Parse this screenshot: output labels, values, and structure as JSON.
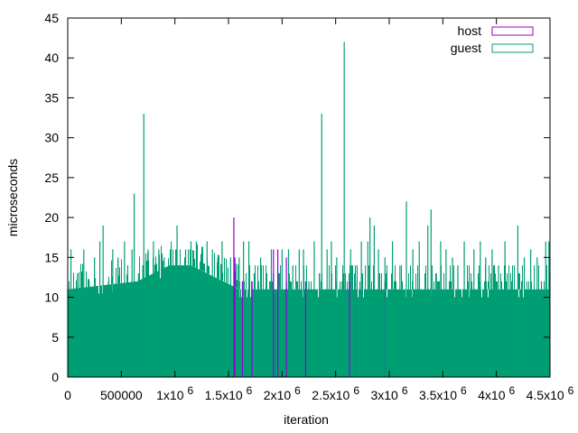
{
  "chart_data": {
    "type": "bar",
    "title": "",
    "xlabel": "iteration",
    "ylabel": "microseconds",
    "xlim": [
      0,
      4500000
    ],
    "ylim": [
      0,
      45
    ],
    "xticks": [
      {
        "value": 0,
        "label": "0",
        "sup": ""
      },
      {
        "value": 500000,
        "label": "500000",
        "sup": ""
      },
      {
        "value": 1000000,
        "label": "1x10",
        "sup": "6"
      },
      {
        "value": 1500000,
        "label": "1.5x10",
        "sup": "6"
      },
      {
        "value": 2000000,
        "label": "2x10",
        "sup": "6"
      },
      {
        "value": 2500000,
        "label": "2.5x10",
        "sup": "6"
      },
      {
        "value": 3000000,
        "label": "3x10",
        "sup": "6"
      },
      {
        "value": 3500000,
        "label": "3.5x10",
        "sup": "6"
      },
      {
        "value": 4000000,
        "label": "4x10",
        "sup": "6"
      },
      {
        "value": 4500000,
        "label": "4.5x10",
        "sup": "6"
      }
    ],
    "yticks": [
      0,
      5,
      10,
      15,
      20,
      25,
      30,
      35,
      40,
      45
    ],
    "grid": false,
    "legend_position": "top-right",
    "series": [
      {
        "name": "host",
        "color": "#9400d3",
        "baseline": 10,
        "points": [
          [
            1550000,
            20
          ],
          [
            1560000,
            15
          ],
          [
            1630000,
            12
          ],
          [
            1720000,
            12
          ],
          [
            1920000,
            16
          ],
          [
            1960000,
            16
          ],
          [
            2040000,
            15
          ],
          [
            2220000,
            12
          ],
          [
            2630000,
            12
          ],
          [
            2700000,
            12
          ],
          [
            2960000,
            12
          ]
        ]
      },
      {
        "name": "guest",
        "color": "#009e73",
        "baseline": 11,
        "points": [
          [
            30000,
            16
          ],
          [
            90000,
            13
          ],
          [
            150000,
            16
          ],
          [
            200000,
            12
          ],
          [
            250000,
            15
          ],
          [
            300000,
            17
          ],
          [
            330000,
            19
          ],
          [
            380000,
            12
          ],
          [
            420000,
            16
          ],
          [
            470000,
            15
          ],
          [
            530000,
            17
          ],
          [
            560000,
            14
          ],
          [
            600000,
            16
          ],
          [
            620000,
            23
          ],
          [
            660000,
            13
          ],
          [
            700000,
            14
          ],
          [
            710000,
            33
          ],
          [
            750000,
            16
          ],
          [
            800000,
            17
          ],
          [
            850000,
            16
          ],
          [
            880000,
            14
          ],
          [
            900000,
            15
          ],
          [
            950000,
            14
          ],
          [
            1020000,
            19
          ],
          [
            1060000,
            13
          ],
          [
            1100000,
            16
          ],
          [
            1150000,
            17
          ],
          [
            1200000,
            17
          ],
          [
            1250000,
            15
          ],
          [
            1300000,
            17
          ],
          [
            1350000,
            16
          ],
          [
            1400000,
            15
          ],
          [
            1440000,
            17
          ],
          [
            1480000,
            14
          ],
          [
            1520000,
            15
          ],
          [
            1600000,
            15
          ],
          [
            1640000,
            17
          ],
          [
            1690000,
            17
          ],
          [
            1740000,
            13
          ],
          [
            1800000,
            15
          ],
          [
            1850000,
            12
          ],
          [
            1900000,
            16
          ],
          [
            2000000,
            16
          ],
          [
            2060000,
            16
          ],
          [
            2100000,
            14
          ],
          [
            2160000,
            16
          ],
          [
            2200000,
            16
          ],
          [
            2250000,
            12
          ],
          [
            2300000,
            17
          ],
          [
            2350000,
            13
          ],
          [
            2370000,
            33
          ],
          [
            2420000,
            16
          ],
          [
            2460000,
            17
          ],
          [
            2510000,
            15
          ],
          [
            2560000,
            12
          ],
          [
            2580000,
            42
          ],
          [
            2640000,
            16
          ],
          [
            2700000,
            14
          ],
          [
            2740000,
            17
          ],
          [
            2800000,
            17
          ],
          [
            2820000,
            20
          ],
          [
            2860000,
            19
          ],
          [
            2900000,
            16
          ],
          [
            2960000,
            15
          ],
          [
            3030000,
            17
          ],
          [
            3100000,
            14
          ],
          [
            3160000,
            22
          ],
          [
            3220000,
            16
          ],
          [
            3280000,
            17
          ],
          [
            3360000,
            19
          ],
          [
            3390000,
            21
          ],
          [
            3440000,
            13
          ],
          [
            3480000,
            17
          ],
          [
            3530000,
            16
          ],
          [
            3590000,
            15
          ],
          [
            3640000,
            14
          ],
          [
            3700000,
            17
          ],
          [
            3740000,
            12
          ],
          [
            3790000,
            16
          ],
          [
            3850000,
            17
          ],
          [
            3900000,
            15
          ],
          [
            3960000,
            16
          ],
          [
            4020000,
            14
          ],
          [
            4080000,
            17
          ],
          [
            4140000,
            12
          ],
          [
            4200000,
            19
          ],
          [
            4260000,
            15
          ],
          [
            4320000,
            16
          ],
          [
            4380000,
            15
          ],
          [
            4420000,
            12
          ],
          [
            4460000,
            17
          ],
          [
            4490000,
            17
          ]
        ],
        "dense_band": [
          [
            0,
            11
          ],
          [
            650000,
            12
          ],
          [
            800000,
            13
          ],
          [
            950000,
            14
          ],
          [
            1150000,
            14
          ],
          [
            1300000,
            13
          ],
          [
            1450000,
            12
          ],
          [
            1600000,
            11
          ],
          [
            4500000,
            11
          ]
        ]
      }
    ]
  }
}
